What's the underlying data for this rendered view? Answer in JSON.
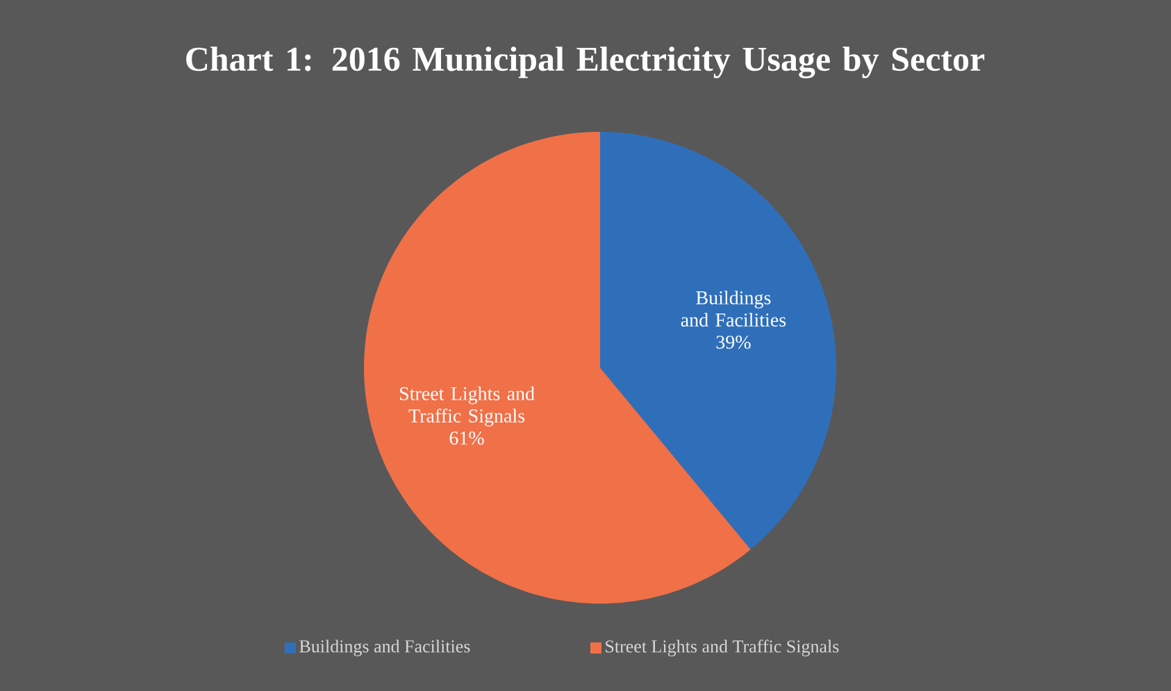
{
  "chart_data": {
    "type": "pie",
    "title": "Chart 1: 2016 Municipal Electricity Usage by Sector",
    "categories": [
      "Buildings and Facilities",
      "Street Lights and Traffic Signals"
    ],
    "values": [
      39,
      61
    ],
    "colors": [
      "#2f6fba",
      "#f07048"
    ],
    "value_labels": [
      "39%",
      "61%"
    ],
    "legend": "bottom"
  }
}
